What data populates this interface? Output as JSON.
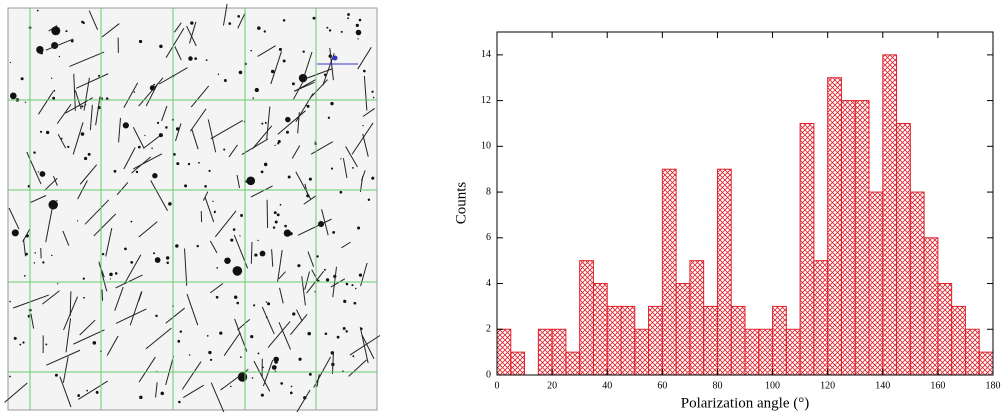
{
  "chart_data": {
    "type": "histogram",
    "xlabel": "Polarization angle (°)",
    "ylabel": "Counts",
    "bins": [
      0,
      5,
      10,
      15,
      20,
      25,
      30,
      35,
      40,
      45,
      50,
      55,
      60,
      65,
      70,
      75,
      80,
      85,
      90,
      95,
      100,
      105,
      110,
      115,
      120,
      125,
      130,
      135,
      140,
      145,
      150,
      155,
      160,
      165,
      170,
      175,
      180
    ],
    "counts": [
      2,
      1,
      0,
      2,
      2,
      1,
      5,
      4,
      3,
      3,
      2,
      3,
      9,
      4,
      5,
      3,
      9,
      3,
      2,
      2,
      3,
      2,
      11,
      5,
      13,
      12,
      12,
      8,
      14,
      11,
      8,
      6,
      4,
      3,
      2,
      1
    ],
    "color": "#e0202a",
    "xlim": [
      0,
      180
    ],
    "xticks": [
      0,
      20,
      40,
      60,
      80,
      100,
      120,
      140,
      160,
      180
    ],
    "ylim": [
      0,
      15
    ],
    "yticks": [
      0,
      2,
      4,
      6,
      8,
      10,
      12,
      14
    ]
  }
}
